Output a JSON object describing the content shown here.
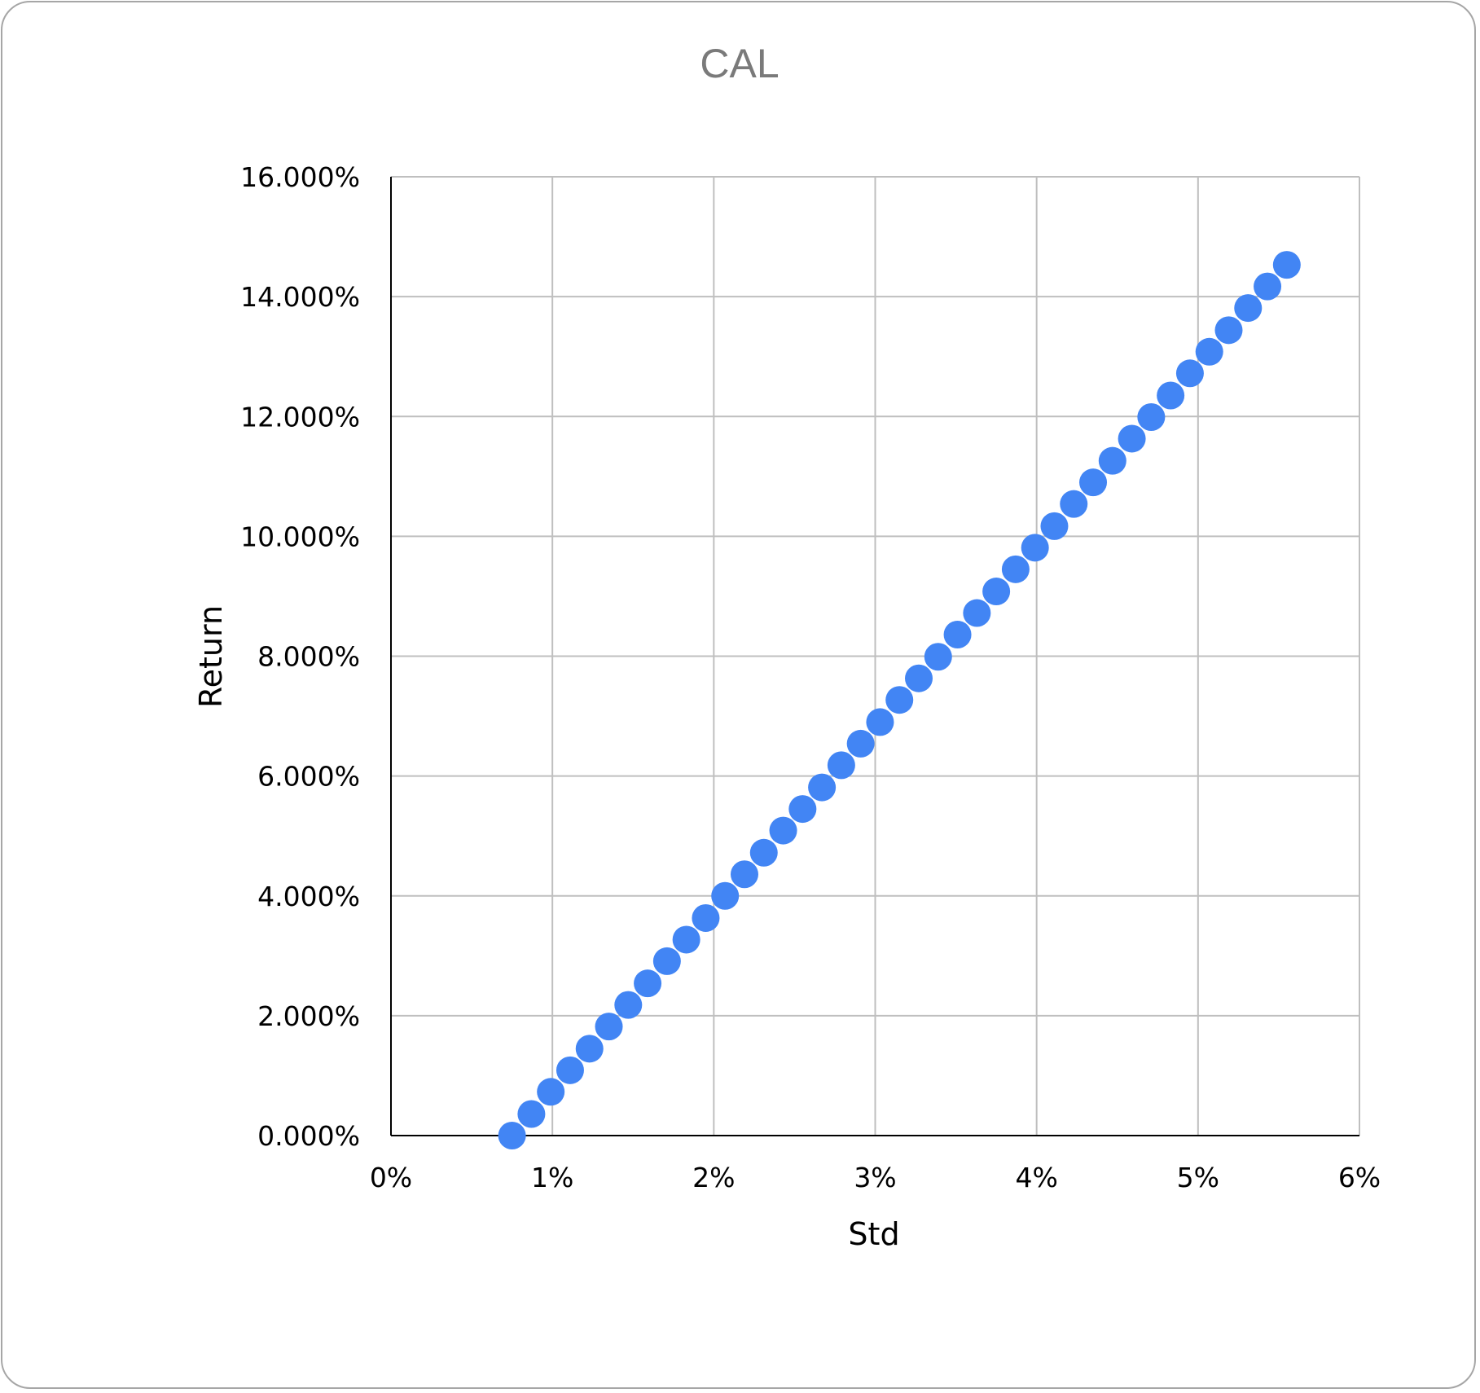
{
  "chart_data": {
    "type": "scatter",
    "title": "CAL",
    "xlabel": "Std",
    "ylabel": "Return",
    "xlim": [
      0,
      0.06
    ],
    "ylim": [
      0,
      0.16
    ],
    "x_ticks": [
      "0%",
      "1%",
      "2%",
      "3%",
      "4%",
      "5%",
      "6%"
    ],
    "y_ticks": [
      "0.000%",
      "2.000%",
      "4.000%",
      "6.000%",
      "8.000%",
      "10.000%",
      "12.000%",
      "14.000%",
      "16.000%"
    ],
    "grid": true,
    "legend": "none",
    "marker_color": "#4285F4",
    "series": [
      {
        "x": [
          0.0075,
          0.0087,
          0.0099,
          0.0111,
          0.0123,
          0.0135,
          0.0147,
          0.0159,
          0.0171,
          0.0183,
          0.0195,
          0.0207,
          0.0219,
          0.0231,
          0.0243,
          0.0255,
          0.0267,
          0.0279,
          0.0291,
          0.0303,
          0.0315,
          0.0327,
          0.0339,
          0.0351,
          0.0363,
          0.0375,
          0.0387,
          0.0399,
          0.0411,
          0.0423,
          0.0435,
          0.0447,
          0.0459,
          0.0471,
          0.0483,
          0.0495,
          0.0507,
          0.0519,
          0.0531,
          0.0543,
          0.0555
        ],
        "y": [
          0.0,
          0.0036,
          0.0073,
          0.0109,
          0.0145,
          0.0182,
          0.0218,
          0.0254,
          0.0291,
          0.0327,
          0.0363,
          0.04,
          0.0436,
          0.0472,
          0.0509,
          0.0545,
          0.0581,
          0.0618,
          0.0654,
          0.069,
          0.0727,
          0.0763,
          0.0799,
          0.0836,
          0.0872,
          0.0908,
          0.0945,
          0.0981,
          0.1017,
          0.1054,
          0.109,
          0.1126,
          0.1163,
          0.1199,
          0.1235,
          0.1272,
          0.1308,
          0.1344,
          0.1381,
          0.1417,
          0.1453
        ]
      }
    ]
  }
}
